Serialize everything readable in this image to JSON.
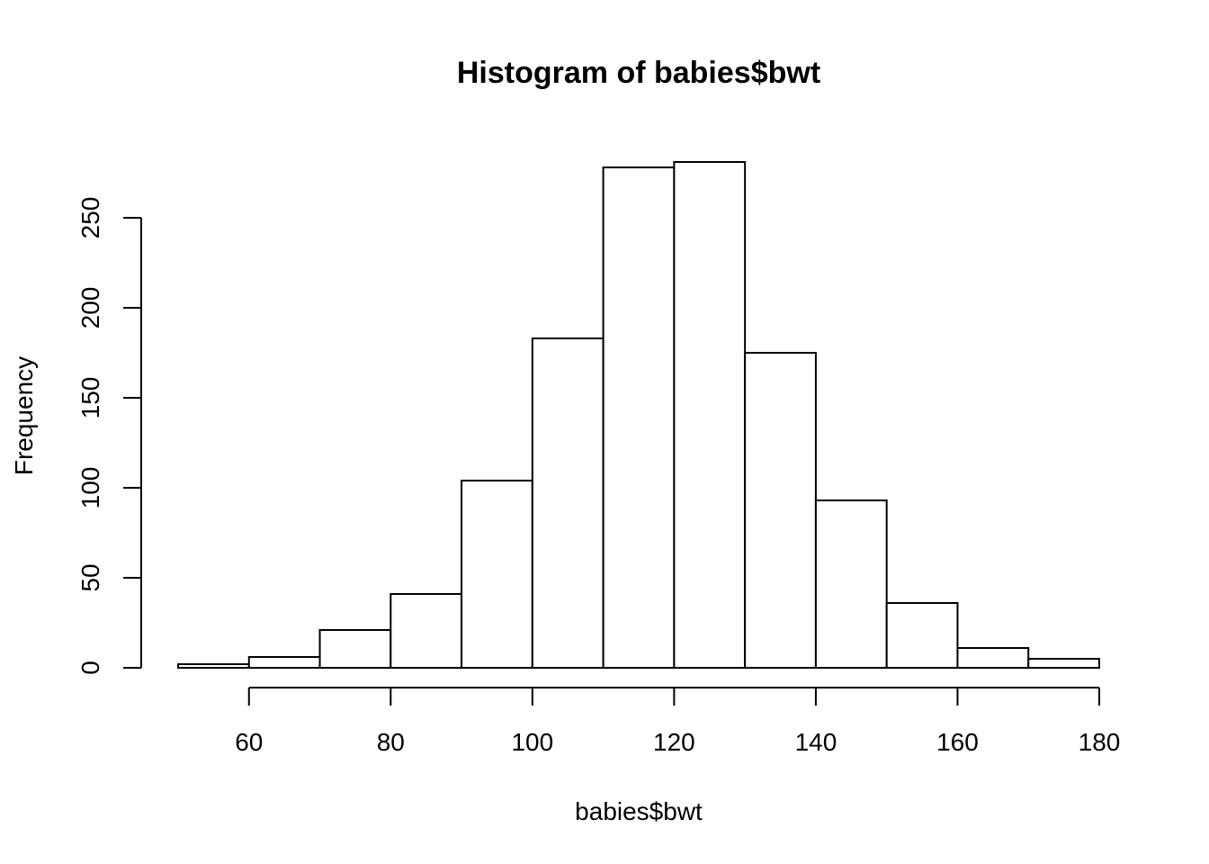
{
  "chart_data": {
    "type": "bar",
    "title": "Histogram of babies$bwt",
    "xlabel": "babies$bwt",
    "ylabel": "Frequency",
    "bins": [
      {
        "x0": 50,
        "x1": 60,
        "count": 2
      },
      {
        "x0": 60,
        "x1": 70,
        "count": 6
      },
      {
        "x0": 70,
        "x1": 80,
        "count": 21
      },
      {
        "x0": 80,
        "x1": 90,
        "count": 41
      },
      {
        "x0": 90,
        "x1": 100,
        "count": 104
      },
      {
        "x0": 100,
        "x1": 110,
        "count": 183
      },
      {
        "x0": 110,
        "x1": 120,
        "count": 278
      },
      {
        "x0": 120,
        "x1": 130,
        "count": 281
      },
      {
        "x0": 130,
        "x1": 140,
        "count": 175
      },
      {
        "x0": 140,
        "x1": 150,
        "count": 93
      },
      {
        "x0": 150,
        "x1": 160,
        "count": 36
      },
      {
        "x0": 160,
        "x1": 170,
        "count": 11
      },
      {
        "x0": 170,
        "x1": 180,
        "count": 5
      }
    ],
    "xticks": [
      60,
      80,
      100,
      120,
      140,
      160,
      180
    ],
    "yticks": [
      0,
      50,
      100,
      150,
      200,
      250
    ],
    "xlim": [
      50,
      180
    ],
    "ylim": [
      0,
      281
    ],
    "grid": false,
    "bar_fill": "#ffffff",
    "bar_stroke": "#000000"
  }
}
